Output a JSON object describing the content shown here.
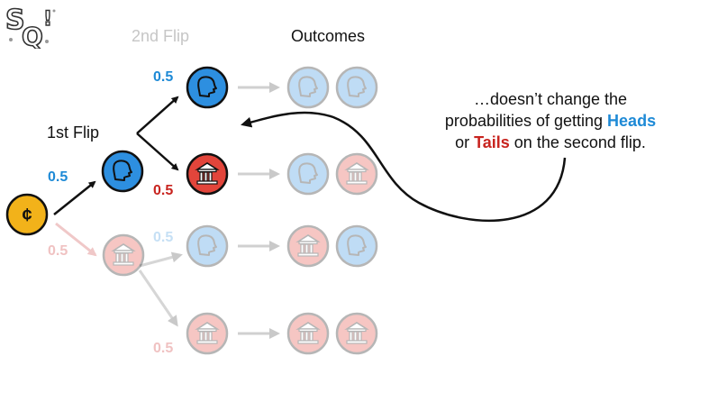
{
  "headers": {
    "flip2": "2nd Flip",
    "outcomes": "Outcomes",
    "flip1": "1st Flip"
  },
  "probs": {
    "flip1_heads": "0.5",
    "flip1_tails": "0.5",
    "flip2_h_heads": "0.5",
    "flip2_h_tails": "0.5",
    "flip2_t_heads": "0.5",
    "flip2_t_tails": "0.5"
  },
  "callout": {
    "line1": "…doesn’t change the",
    "line2_prefix": "probabilities of getting ",
    "heads_word": "Heads",
    "line3_prefix": "or ",
    "tails_word": "Tails",
    "line3_suffix": " on the second flip."
  },
  "logo_text": "StatQuest",
  "colors": {
    "heads_blue": "#2d8fe0",
    "tails_red": "#e2453b",
    "coin_gold": "#f2b21a",
    "heads_label": "#1e8ad6",
    "tails_label": "#c8241f"
  }
}
